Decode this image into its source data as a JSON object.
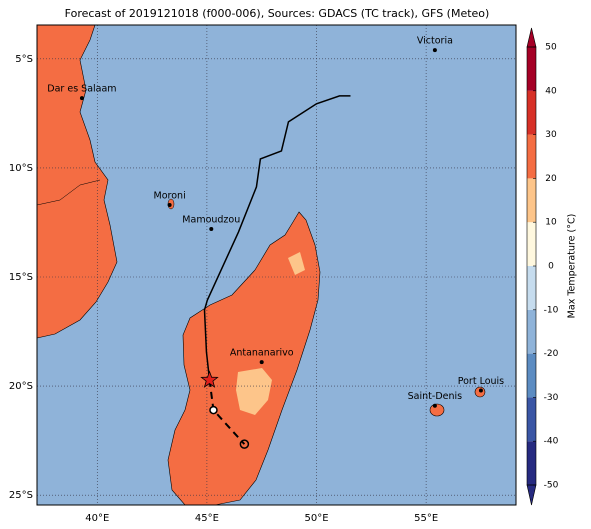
{
  "map": {
    "title": "Forecast of 2019121018 (f000-006), Sources: GDACS (TC track), GFS (Meteo)",
    "xlim": [
      37.25,
      59.1
    ],
    "ylim": [
      -25.45,
      -3.45
    ],
    "xticks": [
      {
        "value": 40,
        "label": "40°E"
      },
      {
        "value": 45,
        "label": "45°E"
      },
      {
        "value": 50,
        "label": "50°E"
      },
      {
        "value": 55,
        "label": "55°E"
      }
    ],
    "yticks": [
      {
        "value": -5,
        "label": "5°S"
      },
      {
        "value": -10,
        "label": "10°S"
      },
      {
        "value": -15,
        "label": "15°S"
      },
      {
        "value": -20,
        "label": "20°S"
      },
      {
        "value": -25,
        "label": "25°S"
      }
    ],
    "cities": [
      {
        "name": "Victoria",
        "lon": 55.4,
        "lat": -4.6
      },
      {
        "name": "Dar es Salaam",
        "lon": 39.3,
        "lat": -6.8
      },
      {
        "name": "Moroni",
        "lon": 43.3,
        "lat": -11.7
      },
      {
        "name": "Mamoudzou",
        "lon": 45.2,
        "lat": -12.8
      },
      {
        "name": "Antananarivo",
        "lon": 47.5,
        "lat": -18.9
      },
      {
        "name": "Saint-Denis",
        "lon": 55.4,
        "lat": -20.9
      },
      {
        "name": "Port Louis",
        "lon": 57.5,
        "lat": -20.2
      }
    ],
    "track": {
      "lon": [
        51.55,
        51.05,
        50.0,
        48.72,
        48.4,
        47.44,
        47.26,
        46.44,
        45.02,
        44.89,
        44.98,
        45.12
      ],
      "lat": [
        -6.7,
        -6.7,
        -7.06,
        -7.89,
        -9.22,
        -9.59,
        -10.87,
        -12.94,
        -16.06,
        -16.51,
        -18.44,
        -19.72
      ]
    },
    "forecast_track": {
      "lon": [
        45.12,
        45.3,
        46.71
      ],
      "lat": [
        -19.72,
        -21.1,
        -22.66
      ]
    },
    "colorbar": {
      "label": "Max Temperature (°C)",
      "lim": [
        -50,
        50
      ],
      "ticks": [
        -50,
        -40,
        -30,
        -20,
        -10,
        0,
        10,
        20,
        30,
        40,
        50
      ],
      "colors": [
        "#262a80",
        "#3a56a5",
        "#5c8cc2",
        "#8fb3d9",
        "#c6dcee",
        "#fff8df",
        "#fdc58a",
        "#f46d43",
        "#d73027",
        "#a50026"
      ]
    }
  }
}
